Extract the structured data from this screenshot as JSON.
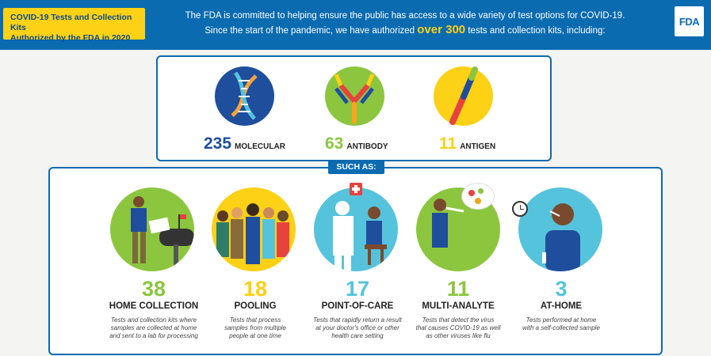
{
  "header": {
    "badge_line1": "COVID-19 Tests and Collection Kits",
    "badge_line2": "Authorized by the FDA in 2020",
    "line1": "The FDA is committed to helping ensure the public has access to a wide variety of test options for COVID-19.",
    "line2_pre": "Since the start of the pandemic, we have authorized",
    "line2_highlight": "over 300",
    "line2_post": "tests and collection kits, including:",
    "logo": "FDA"
  },
  "test_types": [
    {
      "count": "235",
      "label": "MOLECULAR",
      "color": "#1f4e9c",
      "icon": "dna-icon"
    },
    {
      "count": "63",
      "label": "ANTIBODY",
      "color": "#8cc63f",
      "icon": "antibody-icon"
    },
    {
      "count": "11",
      "label": "ANTIGEN",
      "color": "#fcd116",
      "icon": "antigen-icon"
    }
  ],
  "such_as": "SUCH AS:",
  "categories": [
    {
      "count": "38",
      "name": "HOME COLLECTION",
      "desc1": "Tests and collection kits where",
      "desc2": "samples are collected at home",
      "desc3": "and sent to a lab for processing",
      "color": "#8cc63f"
    },
    {
      "count": "18",
      "name": "POOLING",
      "desc1": "Tests that process",
      "desc2": "samples from multiple",
      "desc3": "people at one time",
      "color": "#fcd116"
    },
    {
      "count": "17",
      "name": "POINT-OF-CARE",
      "desc1": "Tests that rapidly return a result",
      "desc2": "at your doctor's office or other",
      "desc3": "health care setting",
      "color": "#56c3dc"
    },
    {
      "count": "11",
      "name": "MULTI-ANALYTE",
      "desc1": "Tests that detect the virus",
      "desc2": "that causes COVID-19 as well",
      "desc3": "as other viruses like flu",
      "color": "#8cc63f"
    },
    {
      "count": "3",
      "name": "AT-HOME",
      "desc1": "Tests performed at home",
      "desc2": "with a self-collected sample",
      "desc3": "",
      "color": "#56c3dc"
    }
  ],
  "colors": {
    "brand_blue": "#0b6bb0",
    "yellow": "#fcd116",
    "green": "#8cc63f",
    "cyan": "#56c3dc",
    "navy": "#1f4e9c"
  }
}
